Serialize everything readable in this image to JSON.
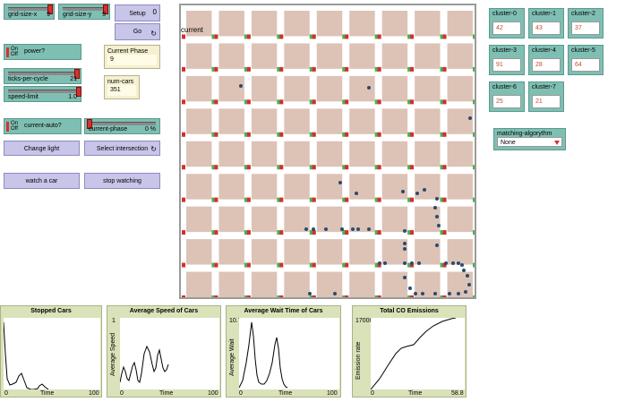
{
  "controls": {
    "grid_size_x": {
      "label": "grid-size-x",
      "value": "9",
      "fraction": 0.93
    },
    "grid_size_y": {
      "label": "grid-size-y",
      "value": "9",
      "fraction": 0.93
    },
    "setup_button": {
      "label": "Setup",
      "shortcut": "0"
    },
    "go_button": {
      "label": "Go",
      "forever_icon": "forever-icon"
    },
    "power_switch": {
      "on_label": "On",
      "off_label": "Off",
      "label": "power?"
    },
    "current_phase_monitor": {
      "label": "Current Phase",
      "value": "9"
    },
    "ticks_per_cycle": {
      "label": "ticks-per-cycle",
      "value": "21",
      "fraction": 0.93
    },
    "speed_limit": {
      "label": "speed-limit",
      "value": "1.0",
      "fraction": 0.97
    },
    "num_cars_monitor": {
      "label": "num-cars",
      "value": "351"
    },
    "current_auto_switch": {
      "on_label": "On",
      "off_label": "Off",
      "label": "current-auto?"
    },
    "current_phase_slider": {
      "label": "current-phase",
      "value": "0 %",
      "fraction": 0.0
    },
    "change_light_button": {
      "label": "Change light"
    },
    "select_intersection_button": {
      "label": "Select intersection",
      "forever_icon": "forever-icon"
    },
    "watch_car_button": {
      "label": "watch a car"
    },
    "stop_watching_button": {
      "label": "stop watching"
    }
  },
  "world": {
    "label_text": "current"
  },
  "clusters": [
    {
      "label": "cluster-0",
      "value": "42"
    },
    {
      "label": "cluster-1",
      "value": "43"
    },
    {
      "label": "cluster-2",
      "value": "37"
    },
    {
      "label": "cluster-3",
      "value": "91"
    },
    {
      "label": "cluster-4",
      "value": "28"
    },
    {
      "label": "cluster-5",
      "value": "64"
    },
    {
      "label": "cluster-6",
      "value": "25"
    },
    {
      "label": "cluster-7",
      "value": "21"
    }
  ],
  "matching_algorythm": {
    "label": "matching-algorythm",
    "value": "None"
  },
  "plots": [
    {
      "title": "Stopped Cars",
      "ylabel": "",
      "ymax": "",
      "xmin": "0",
      "xmax": "100",
      "xlabel": "Time"
    },
    {
      "title": "Average Speed of Cars",
      "ylabel": "Average Speed",
      "ymax": "1",
      "xmin": "0",
      "xmax": "100",
      "xlabel": "Time"
    },
    {
      "title": "Average Wait Time of Cars",
      "ylabel": "Average Wait",
      "ymax": "10.7",
      "xmin": "0",
      "xmax": "100",
      "xlabel": "Time"
    },
    {
      "title": "Total CO Emissions",
      "ylabel": "Emission rate",
      "ymax": "170000",
      "xmin": "0",
      "xmax": "58.8",
      "xlabel": "Time"
    }
  ],
  "colors": {
    "light_green": "#4caf50",
    "light_red": "#d32f2f",
    "block": "#dcc3b6",
    "car": "#2c4a6e"
  }
}
